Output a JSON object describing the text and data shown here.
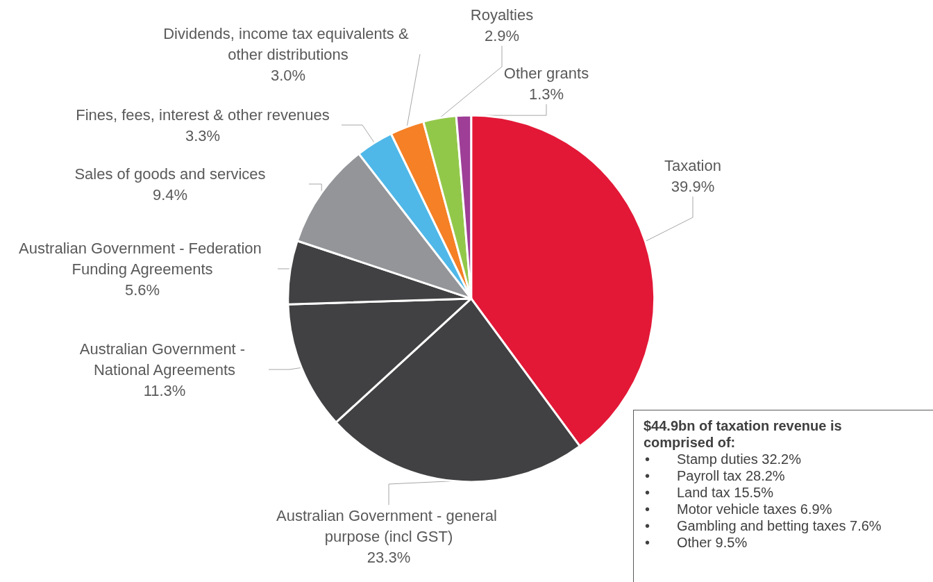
{
  "chart_data": {
    "type": "pie",
    "categories": [
      "Taxation",
      "Australian Government - general purpose (incl GST)",
      "Australian Government - National Agreements",
      "Australian Government - Federation Funding Agreements",
      "Sales of goods and services",
      "Fines, fees, interest & other revenues",
      "Dividends, income tax equivalents & other distributions",
      "Royalties",
      "Other grants"
    ],
    "values": [
      39.9,
      23.3,
      11.3,
      5.6,
      9.4,
      3.3,
      3.0,
      2.9,
      1.3
    ],
    "value_labels": [
      "39.9%",
      "23.3%",
      "11.3%",
      "5.6%",
      "9.4%",
      "3.3%",
      "3.0%",
      "2.9%",
      "1.3%"
    ],
    "colors": [
      "#e31837",
      "#414042",
      "#414042",
      "#414042",
      "#939598",
      "#4fb8e8",
      "#f58025",
      "#92c84a",
      "#9e3e97"
    ],
    "legend": false,
    "annotations": [
      "$44.9bn of taxation revenue is comprised of:",
      "•\tStamp duties 32.2%",
      "•\tPayroll tax 28.2%",
      "•\tLand tax 15.5%",
      "•\tMotor vehicle taxes 6.9%",
      "•\tGambling and betting taxes 7.6%",
      "•\tOther 9.5%"
    ]
  }
}
